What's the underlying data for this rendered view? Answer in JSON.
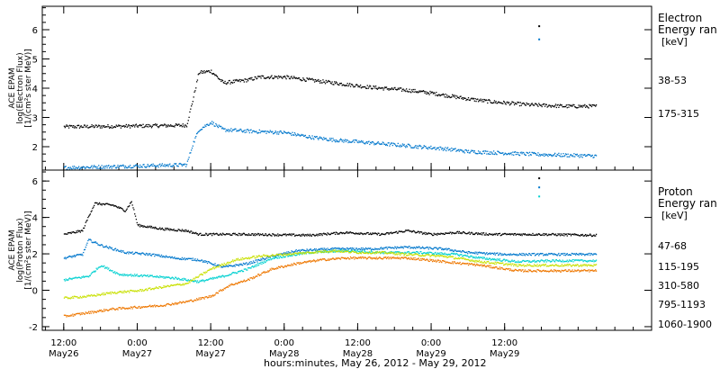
{
  "chart_data": [
    {
      "type": "scatter",
      "panel": "electron",
      "ylabel_lines": [
        "ACE EPAM",
        "log(Electron Flux)",
        "[1/(cm²s ster MeV)]"
      ],
      "legend_title": [
        "Electron",
        "Energy ran"
      ],
      "legend_unit": "[keV]",
      "ylim": [
        1.2,
        6.8
      ],
      "yticks": [
        2,
        3,
        4,
        5,
        6
      ],
      "series": [
        {
          "name": "38-53",
          "color": "#000000",
          "points": [
            [
              0,
              2.7
            ],
            [
              10,
              2.72
            ],
            [
              20,
              2.75
            ],
            [
              21,
              3.6
            ],
            [
              22,
              4.55
            ],
            [
              24,
              4.6
            ],
            [
              26,
              4.2
            ],
            [
              30,
              4.3
            ],
            [
              32,
              4.4
            ],
            [
              36,
              4.4
            ],
            [
              40,
              4.3
            ],
            [
              44,
              4.2
            ],
            [
              50,
              4.05
            ],
            [
              56,
              3.95
            ],
            [
              60,
              3.85
            ],
            [
              66,
              3.65
            ],
            [
              70,
              3.55
            ],
            [
              76,
              3.45
            ],
            [
              82,
              3.4
            ],
            [
              87,
              3.4
            ]
          ]
        },
        {
          "name": "175-315",
          "color": "#0077cc",
          "points": [
            [
              0,
              1.3
            ],
            [
              10,
              1.35
            ],
            [
              20,
              1.4
            ],
            [
              21,
              2.1
            ],
            [
              22,
              2.6
            ],
            [
              24,
              2.85
            ],
            [
              26,
              2.6
            ],
            [
              30,
              2.55
            ],
            [
              36,
              2.5
            ],
            [
              40,
              2.35
            ],
            [
              44,
              2.25
            ],
            [
              50,
              2.15
            ],
            [
              56,
              2.05
            ],
            [
              62,
              1.95
            ],
            [
              66,
              1.85
            ],
            [
              72,
              1.8
            ],
            [
              78,
              1.75
            ],
            [
              87,
              1.7
            ]
          ]
        }
      ],
      "annotations": [
        {
          "x": 77.5,
          "y": 6.15,
          "color": "#000000"
        },
        {
          "x": 77.5,
          "y": 5.7,
          "color": "#0077cc"
        }
      ]
    },
    {
      "type": "scatter",
      "panel": "proton",
      "ylabel_lines": [
        "ACE EPAM",
        "log(Proton Flux)",
        "[1/(cm²s ster MeV)]"
      ],
      "legend_title": [
        "Proton",
        "Energy ran"
      ],
      "legend_unit": "[keV]",
      "ylim": [
        -2.2,
        6.6
      ],
      "yticks": [
        -2,
        0,
        2,
        4,
        6
      ],
      "series": [
        {
          "name": "47-68",
          "color": "#000000",
          "points": [
            [
              0,
              3.1
            ],
            [
              3,
              3.3
            ],
            [
              4,
              4.1
            ],
            [
              5,
              4.8
            ],
            [
              8,
              4.7
            ],
            [
              10,
              4.4
            ],
            [
              11,
              4.9
            ],
            [
              12,
              3.6
            ],
            [
              14,
              3.5
            ],
            [
              16,
              3.4
            ],
            [
              20,
              3.3
            ],
            [
              22,
              3.1
            ],
            [
              30,
              3.1
            ],
            [
              40,
              3.05
            ],
            [
              46,
              3.2
            ],
            [
              52,
              3.1
            ],
            [
              56,
              3.3
            ],
            [
              60,
              3.1
            ],
            [
              64,
              3.2
            ],
            [
              70,
              3.1
            ],
            [
              78,
              3.1
            ],
            [
              87,
              3.05
            ]
          ]
        },
        {
          "name": "115-195",
          "color": "#0077cc",
          "points": [
            [
              0,
              1.8
            ],
            [
              3,
              2.0
            ],
            [
              4,
              2.8
            ],
            [
              6,
              2.5
            ],
            [
              10,
              2.1
            ],
            [
              14,
              2.0
            ],
            [
              18,
              1.8
            ],
            [
              22,
              1.7
            ],
            [
              26,
              1.3
            ],
            [
              30,
              1.5
            ],
            [
              34,
              1.9
            ],
            [
              38,
              2.2
            ],
            [
              44,
              2.3
            ],
            [
              50,
              2.3
            ],
            [
              56,
              2.4
            ],
            [
              62,
              2.3
            ],
            [
              66,
              2.1
            ],
            [
              72,
              2.0
            ],
            [
              80,
              2.0
            ],
            [
              87,
              2.0
            ]
          ]
        },
        {
          "name": "310-580",
          "color": "#00d0d0",
          "points": [
            [
              0,
              0.6
            ],
            [
              4,
              0.8
            ],
            [
              6,
              1.4
            ],
            [
              9,
              0.9
            ],
            [
              14,
              0.8
            ],
            [
              18,
              0.7
            ],
            [
              22,
              0.5
            ],
            [
              26,
              0.8
            ],
            [
              30,
              1.2
            ],
            [
              34,
              1.8
            ],
            [
              40,
              2.1
            ],
            [
              46,
              2.2
            ],
            [
              52,
              2.1
            ],
            [
              58,
              2.1
            ],
            [
              64,
              2.0
            ],
            [
              68,
              1.8
            ],
            [
              74,
              1.6
            ],
            [
              80,
              1.65
            ],
            [
              87,
              1.65
            ]
          ]
        },
        {
          "name": "795-1193",
          "color": "#c8e000",
          "points": [
            [
              0,
              -0.4
            ],
            [
              4,
              -0.3
            ],
            [
              8,
              -0.1
            ],
            [
              12,
              0.0
            ],
            [
              16,
              0.2
            ],
            [
              20,
              0.4
            ],
            [
              24,
              1.2
            ],
            [
              28,
              1.7
            ],
            [
              32,
              1.9
            ],
            [
              36,
              2.0
            ],
            [
              40,
              2.1
            ],
            [
              44,
              2.2
            ],
            [
              48,
              2.1
            ],
            [
              52,
              2.1
            ],
            [
              56,
              2.0
            ],
            [
              62,
              1.9
            ],
            [
              68,
              1.6
            ],
            [
              74,
              1.4
            ],
            [
              80,
              1.4
            ],
            [
              87,
              1.4
            ]
          ]
        },
        {
          "name": "1060-1900",
          "color": "#ee7700",
          "points": [
            [
              0,
              -1.4
            ],
            [
              4,
              -1.2
            ],
            [
              8,
              -1.0
            ],
            [
              12,
              -0.9
            ],
            [
              16,
              -0.8
            ],
            [
              20,
              -0.6
            ],
            [
              24,
              -0.3
            ],
            [
              27,
              0.3
            ],
            [
              30,
              0.6
            ],
            [
              34,
              1.2
            ],
            [
              38,
              1.5
            ],
            [
              42,
              1.7
            ],
            [
              46,
              1.8
            ],
            [
              50,
              1.8
            ],
            [
              56,
              1.8
            ],
            [
              62,
              1.6
            ],
            [
              68,
              1.4
            ],
            [
              74,
              1.1
            ],
            [
              80,
              1.1
            ],
            [
              87,
              1.1
            ]
          ]
        }
      ],
      "annotations": [
        {
          "x": 77.5,
          "y": 6.2,
          "color": "#000000"
        },
        {
          "x": 77.5,
          "y": 5.7,
          "color": "#0077cc"
        },
        {
          "x": 77.5,
          "y": 5.2,
          "color": "#00d0d0"
        }
      ]
    }
  ],
  "x_axis": {
    "range_hours": [
      -3.5,
      96
    ],
    "ticks": [
      {
        "hour": 0,
        "time": "12:00",
        "date": "May26"
      },
      {
        "hour": 12,
        "time": "0:00",
        "date": "May27"
      },
      {
        "hour": 24,
        "time": "12:00",
        "date": "May27"
      },
      {
        "hour": 36,
        "time": "0:00",
        "date": "May28"
      },
      {
        "hour": 48,
        "time": "12:00",
        "date": "May28"
      },
      {
        "hour": 60,
        "time": "0:00",
        "date": "May29"
      },
      {
        "hour": 72,
        "time": "12:00",
        "date": "May29"
      }
    ],
    "xlabel": "hours:minutes, May 26, 2012 - May 29, 2012"
  }
}
